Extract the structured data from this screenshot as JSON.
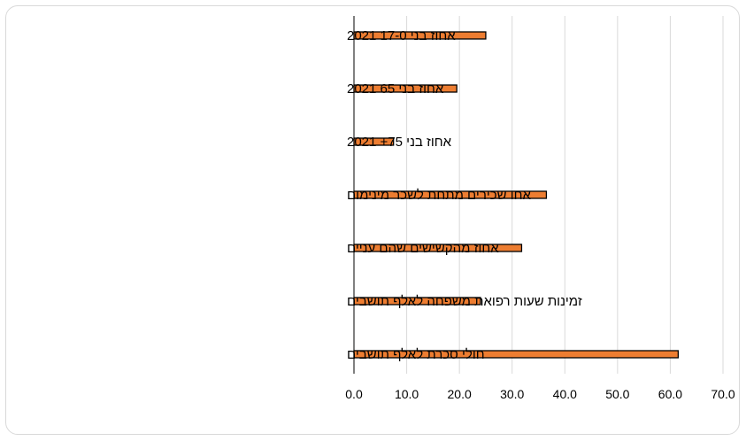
{
  "chart_data": {
    "type": "bar",
    "orientation": "horizontal",
    "categories": [
      "אחוז בני 17-0 2021",
      "אחוז בני 65 2021",
      "אחוז בני 75+ 2021",
      "אחו שכירים מתחת לשכר מינימום",
      "אחוז מהקשישים שהם עניים",
      "זמינות שעות רפואת משפחה לאלף תושבים",
      "חולי סכרת לאלף תושבים"
    ],
    "values": [
      25.0,
      19.5,
      7.5,
      36.5,
      31.8,
      24.0,
      61.5
    ],
    "xlim": [
      0,
      70
    ],
    "xticks": [
      "0.0",
      "10.0",
      "20.0",
      "30.0",
      "40.0",
      "50.0",
      "60.0",
      "70.0"
    ],
    "grid": true,
    "legend": "none",
    "colors": {
      "bar": "#ed7d31",
      "bar_border": "#000000",
      "grid": "#d9d9d9",
      "axis": "#000000"
    }
  }
}
